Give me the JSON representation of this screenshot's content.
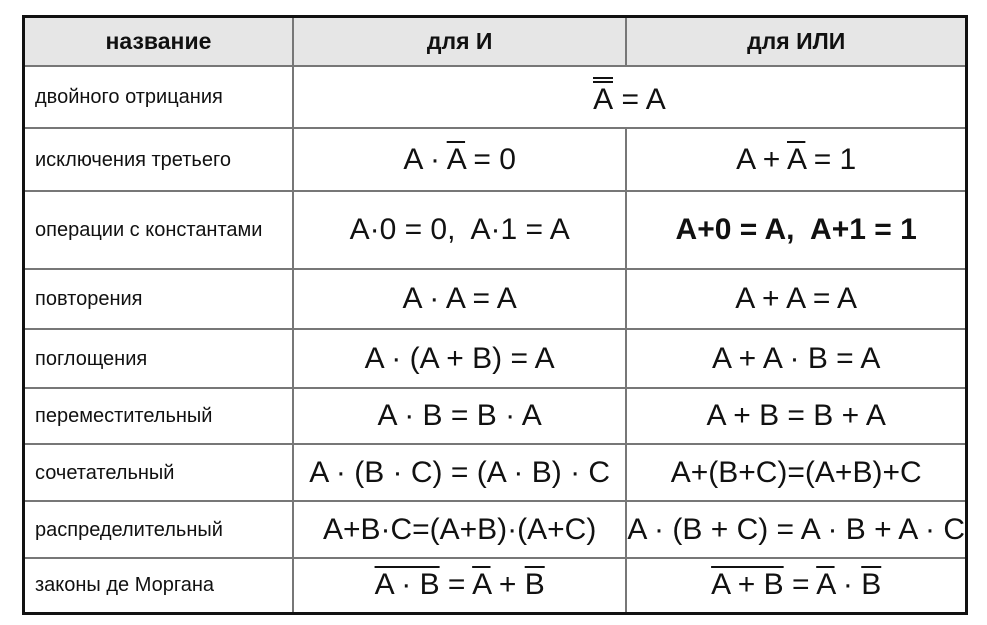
{
  "header": {
    "name": "название",
    "and": "для И",
    "or": "для ИЛИ"
  },
  "rows": [
    {
      "name": "двойного отрицания",
      "span": true,
      "and": [
        {
          "text": "A",
          "overline": 2
        },
        {
          "text": " = A"
        }
      ]
    },
    {
      "name": "исключения третьего",
      "and": [
        {
          "text": "A · "
        },
        {
          "text": "A",
          "overline": 1
        },
        {
          "text": " = 0"
        }
      ],
      "or": [
        {
          "text": "A + "
        },
        {
          "text": "A",
          "overline": 1
        },
        {
          "text": " = 1"
        }
      ]
    },
    {
      "name": "операции с константами",
      "and": [
        {
          "text": "A·0 = 0,  A·1 = A"
        }
      ],
      "or": [
        {
          "text": "A+0 = A,  A+1 = 1",
          "bold": true
        }
      ]
    },
    {
      "name": "повторения",
      "and": [
        {
          "text": "A · A = A"
        }
      ],
      "or": [
        {
          "text": "A + A = A"
        }
      ]
    },
    {
      "name": "поглощения",
      "and": [
        {
          "text": "A · (A + B) = A"
        }
      ],
      "or": [
        {
          "text": "A + A · B = A"
        }
      ]
    },
    {
      "name": "переместительный",
      "and": [
        {
          "text": "A · B = B · A"
        }
      ],
      "or": [
        {
          "text": "A + B = B + A"
        }
      ]
    },
    {
      "name": "сочетательный",
      "and": [
        {
          "text": "A · (B · C) = (A · B) · C"
        }
      ],
      "or": [
        {
          "text": "A+(B+C)=(A+B)+C"
        }
      ]
    },
    {
      "name": "распределительный",
      "and": [
        {
          "text": "A+B·C=(A+B)·(A+C)"
        }
      ],
      "or": [
        {
          "text": "A · (B + C) = A · B + A · C"
        }
      ]
    },
    {
      "name": "законы де Моргана",
      "and": [
        {
          "text": "A · B",
          "overline": 1
        },
        {
          "text": " = "
        },
        {
          "text": "A",
          "overline": 1
        },
        {
          "text": " + "
        },
        {
          "text": "B",
          "overline": 1
        }
      ],
      "or": [
        {
          "text": "A + B",
          "overline": 1
        },
        {
          "text": " = "
        },
        {
          "text": "A",
          "overline": 1
        },
        {
          "text": " · "
        },
        {
          "text": "B",
          "overline": 1
        }
      ]
    }
  ]
}
